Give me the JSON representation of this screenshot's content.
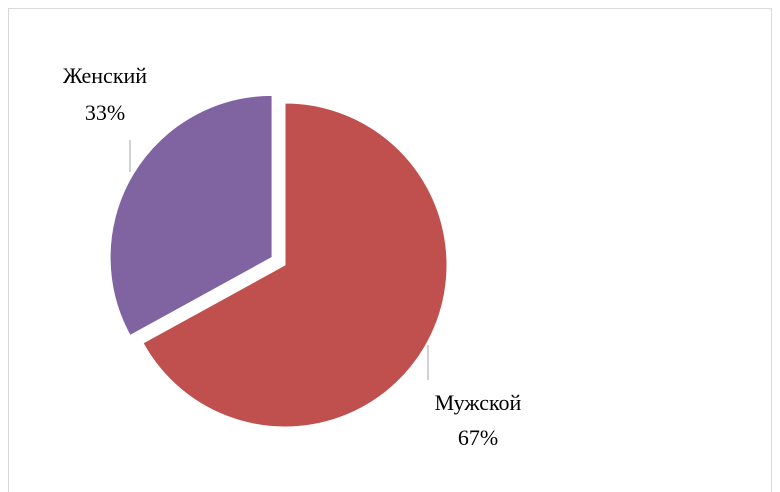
{
  "chart_data": {
    "type": "pie",
    "categories": [
      "Мужской",
      "Женский"
    ],
    "values": [
      67,
      33
    ],
    "value_labels": [
      "67%",
      "33%"
    ],
    "colors": [
      "#c0504d",
      "#8064a2"
    ]
  }
}
